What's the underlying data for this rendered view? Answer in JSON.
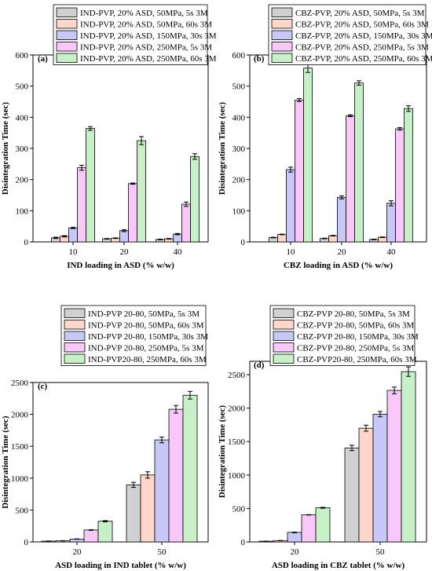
{
  "chart_data": [
    {
      "type": "bar",
      "panel_label": "(a)",
      "categories": [
        "10",
        "20",
        "40"
      ],
      "xlabel": "IND loading in ASD (% w/w)",
      "ylabel": "Disintegration Time (sec)",
      "ylim": [
        0,
        600
      ],
      "yticks": [
        "0",
        "100",
        "200",
        "300",
        "400",
        "500",
        "600"
      ],
      "legend_position": "top",
      "series": [
        {
          "name": "IND-PVP, 20% ASD, 50MPa, 5s 3M",
          "values": [
            13,
            10,
            8
          ],
          "errors": [
            2,
            1,
            1
          ]
        },
        {
          "name": "IND-PVP, 20% ASD, 50MPa, 60s 3M",
          "values": [
            18,
            12,
            10
          ],
          "errors": [
            2,
            1,
            1
          ]
        },
        {
          "name": "IND-PVP, 20% ASD, 150MPa, 30s 3M",
          "values": [
            45,
            36,
            25
          ],
          "errors": [
            2,
            3,
            2
          ]
        },
        {
          "name": "IND-PVP, 20% ASD, 250MPa, 5s 3M",
          "values": [
            238,
            187,
            121
          ],
          "errors": [
            8,
            2,
            7
          ]
        },
        {
          "name": "IND-PVP, 20% ASD, 250MPa, 60s 3M",
          "values": [
            364,
            325,
            274
          ],
          "errors": [
            6,
            13,
            9
          ]
        }
      ],
      "colors": [
        "#d0d0d0",
        "#ffd6cc",
        "#c8c8f8",
        "#f8c8f8",
        "#c8f0c8"
      ]
    },
    {
      "type": "bar",
      "panel_label": "(b)",
      "categories": [
        "10",
        "20",
        "40"
      ],
      "xlabel": "CBZ loading in ASD (% w/w)",
      "ylabel": "Disintegration Time (sec)",
      "ylim": [
        0,
        600
      ],
      "yticks": [
        "0",
        "100",
        "200",
        "300",
        "400",
        "500",
        "600"
      ],
      "legend_position": "top",
      "series": [
        {
          "name": "CBZ-PVP, 20% ASD, 50MPa, 5s 3M",
          "values": [
            14,
            11,
            8
          ],
          "errors": [
            1,
            1,
            1
          ]
        },
        {
          "name": "CBZ-PVP, 20% ASD, 50MPa, 60s 3M",
          "values": [
            24,
            20,
            15
          ],
          "errors": [
            1,
            1,
            1
          ]
        },
        {
          "name": "CBZ-PVP, 20% ASD, 150MPa, 30s 3M",
          "values": [
            232,
            143,
            124
          ],
          "errors": [
            8,
            5,
            8
          ]
        },
        {
          "name": "CBZ-PVP, 20% ASD, 250MPa, 5s 3M",
          "values": [
            455,
            405,
            363
          ],
          "errors": [
            5,
            3,
            4
          ]
        },
        {
          "name": "CBZ-PVP, 20% ASD, 250MPa, 60s 3M",
          "values": [
            558,
            510,
            428
          ],
          "errors": [
            14,
            7,
            9
          ]
        }
      ],
      "colors": [
        "#d0d0d0",
        "#ffd6cc",
        "#c8c8f8",
        "#f8c8f8",
        "#c8f0c8"
      ]
    },
    {
      "type": "bar",
      "panel_label": "(c)",
      "categories": [
        "20",
        "50"
      ],
      "xlabel": "ASD loading in IND tablet (% w/w)",
      "ylabel": "Disintegration Time (sec)",
      "ylim": [
        0,
        2500
      ],
      "yticks": [
        "0",
        "500",
        "1000",
        "1500",
        "2000",
        "2500"
      ],
      "legend_position": "top",
      "series": [
        {
          "name": "IND-PVP 20-80, 50MPa, 5s 3M",
          "values": [
            13,
            895
          ],
          "errors": [
            2,
            40
          ]
        },
        {
          "name": "IND-PVP 20-80, 50MPa, 60s 3M",
          "values": [
            18,
            1050
          ],
          "errors": [
            2,
            50
          ]
        },
        {
          "name": "IND-PVP 20-80, 150MPa, 30s 3M",
          "values": [
            45,
            1600
          ],
          "errors": [
            3,
            45
          ]
        },
        {
          "name": "IND-PVP 20-80, 250MPa, 5s 3M",
          "values": [
            187,
            2080
          ],
          "errors": [
            5,
            60
          ]
        },
        {
          "name": "IND-PVP20-80, 250MPa, 60s 3M",
          "values": [
            325,
            2300
          ],
          "errors": [
            10,
            60
          ]
        }
      ],
      "colors": [
        "#d0d0d0",
        "#ffd6cc",
        "#c8c8f8",
        "#f8c8f8",
        "#c8f0c8"
      ]
    },
    {
      "type": "bar",
      "panel_label": "(d)",
      "categories": [
        "20",
        "50"
      ],
      "xlabel": "ASD loading in CBZ tablet (% w/w)",
      "ylabel": "Disintegration Time (sec)",
      "ylim": [
        0,
        2700
      ],
      "yticks": [
        "0",
        "500",
        "1000",
        "1500",
        "2000",
        "2500"
      ],
      "legend_position": "top",
      "series": [
        {
          "name": "CBZ-PVP 20-80, 50MPa, 5s 3M",
          "values": [
            11,
            1405
          ],
          "errors": [
            1,
            40
          ]
        },
        {
          "name": "CBZ-PVP 20-80, 50MPa, 60s 3M",
          "values": [
            20,
            1700
          ],
          "errors": [
            1,
            45
          ]
        },
        {
          "name": "CBZ-PVP 20-80, 150MPa, 30s 3M",
          "values": [
            143,
            1910
          ],
          "errors": [
            5,
            40
          ]
        },
        {
          "name": "CBZ-PVP 20-80, 250MPa, 5s 3M",
          "values": [
            405,
            2265
          ],
          "errors": [
            3,
            50
          ]
        },
        {
          "name": "CBZ-PVP20-80, 250MPa, 60s 3M",
          "values": [
            510,
            2545
          ],
          "errors": [
            7,
            70
          ]
        }
      ],
      "colors": [
        "#d0d0d0",
        "#ffd6cc",
        "#c8c8f8",
        "#f8c8f8",
        "#c8f0c8"
      ]
    }
  ]
}
